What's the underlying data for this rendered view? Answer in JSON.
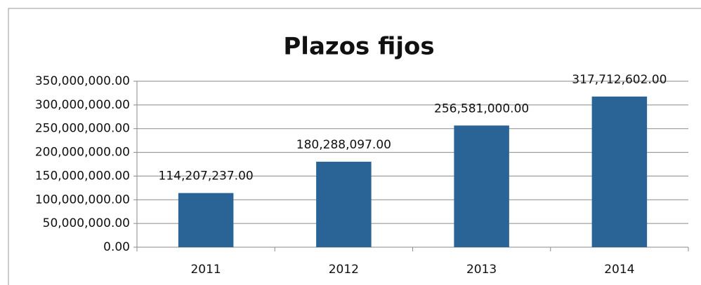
{
  "chart_data": {
    "type": "bar",
    "title": "Plazos fijos",
    "categories": [
      "2011",
      "2012",
      "2013",
      "2014"
    ],
    "values": [
      114207237,
      180288097,
      256581000,
      317712602
    ],
    "value_labels": [
      "114,207,237.00",
      "180,288,097.00",
      "256,581,000.00",
      "317,712,602.00"
    ],
    "color": "#2a6395",
    "ylim": [
      0,
      350000000
    ],
    "yticks": [
      {
        "value": 0,
        "label": "0.00"
      },
      {
        "value": 50000000,
        "label": "50,000,000.00"
      },
      {
        "value": 100000000,
        "label": "100,000,000.00"
      },
      {
        "value": 150000000,
        "label": "150,000,000.00"
      },
      {
        "value": 200000000,
        "label": "200,000,000.00"
      },
      {
        "value": 250000000,
        "label": "250,000,000.00"
      },
      {
        "value": 300000000,
        "label": "300,000,000.00"
      },
      {
        "value": 350000000,
        "label": "350,000,000.00"
      }
    ],
    "grid": true
  }
}
